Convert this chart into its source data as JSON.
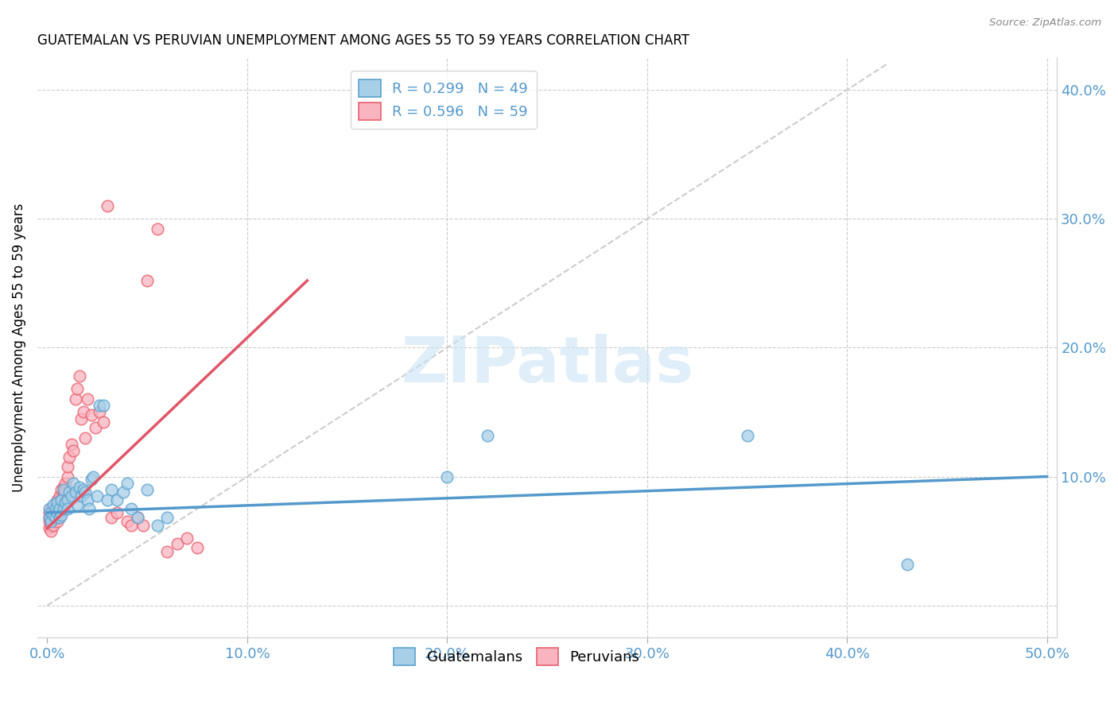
{
  "title": "GUATEMALAN VS PERUVIAN UNEMPLOYMENT AMONG AGES 55 TO 59 YEARS CORRELATION CHART",
  "source": "Source: ZipAtlas.com",
  "ylabel": "Unemployment Among Ages 55 to 59 years",
  "xlim": [
    -0.005,
    0.505
  ],
  "ylim": [
    -0.025,
    0.425
  ],
  "xticks": [
    0.0,
    0.1,
    0.2,
    0.3,
    0.4,
    0.5
  ],
  "yticks_right": [
    0.1,
    0.2,
    0.3,
    0.4
  ],
  "ytick_labels_right": [
    "10.0%",
    "20.0%",
    "30.0%",
    "40.0%"
  ],
  "xtick_labels": [
    "0.0%",
    "10.0%",
    "20.0%",
    "30.0%",
    "40.0%",
    "50.0%"
  ],
  "legend_r_guatemalan": "R = 0.299",
  "legend_n_guatemalan": "N = 49",
  "legend_r_peruvian": "R = 0.596",
  "legend_n_peruvian": "N = 59",
  "guatemalan_color": "#a8cfe8",
  "peruvian_color": "#f9b4c0",
  "guatemalan_edge_color": "#5ba3d0",
  "peruvian_edge_color": "#e8606e",
  "guatemalan_line_color": "#5599cc",
  "peruvian_line_color": "#e05568",
  "diagonal_color": "#cccccc",
  "background_color": "#ffffff",
  "guatemalan_x": [
    0.001,
    0.001,
    0.002,
    0.002,
    0.003,
    0.003,
    0.004,
    0.004,
    0.005,
    0.005,
    0.006,
    0.006,
    0.007,
    0.007,
    0.008,
    0.008,
    0.009,
    0.01,
    0.01,
    0.011,
    0.012,
    0.013,
    0.014,
    0.015,
    0.016,
    0.017,
    0.018,
    0.019,
    0.02,
    0.021,
    0.022,
    0.023,
    0.025,
    0.026,
    0.028,
    0.03,
    0.032,
    0.035,
    0.038,
    0.04,
    0.042,
    0.045,
    0.05,
    0.055,
    0.06,
    0.2,
    0.22,
    0.35,
    0.43
  ],
  "guatemalan_y": [
    0.075,
    0.068,
    0.072,
    0.065,
    0.07,
    0.078,
    0.068,
    0.075,
    0.072,
    0.08,
    0.075,
    0.068,
    0.082,
    0.07,
    0.075,
    0.09,
    0.08,
    0.082,
    0.075,
    0.088,
    0.085,
    0.095,
    0.088,
    0.078,
    0.092,
    0.085,
    0.09,
    0.088,
    0.082,
    0.075,
    0.098,
    0.1,
    0.085,
    0.155,
    0.155,
    0.082,
    0.09,
    0.082,
    0.088,
    0.095,
    0.075,
    0.068,
    0.09,
    0.062,
    0.068,
    0.1,
    0.132,
    0.132,
    0.032
  ],
  "peruvian_x": [
    0.001,
    0.001,
    0.001,
    0.001,
    0.002,
    0.002,
    0.002,
    0.002,
    0.003,
    0.003,
    0.003,
    0.003,
    0.004,
    0.004,
    0.004,
    0.005,
    0.005,
    0.005,
    0.005,
    0.006,
    0.006,
    0.006,
    0.007,
    0.007,
    0.007,
    0.008,
    0.008,
    0.008,
    0.009,
    0.009,
    0.01,
    0.01,
    0.011,
    0.012,
    0.013,
    0.014,
    0.015,
    0.016,
    0.017,
    0.018,
    0.019,
    0.02,
    0.022,
    0.024,
    0.026,
    0.028,
    0.03,
    0.032,
    0.035,
    0.04,
    0.042,
    0.045,
    0.048,
    0.05,
    0.055,
    0.06,
    0.065,
    0.07,
    0.075
  ],
  "peruvian_y": [
    0.068,
    0.072,
    0.065,
    0.06,
    0.068,
    0.075,
    0.062,
    0.058,
    0.072,
    0.068,
    0.075,
    0.062,
    0.078,
    0.072,
    0.068,
    0.082,
    0.075,
    0.07,
    0.065,
    0.085,
    0.078,
    0.072,
    0.09,
    0.082,
    0.078,
    0.088,
    0.092,
    0.082,
    0.095,
    0.088,
    0.1,
    0.108,
    0.115,
    0.125,
    0.12,
    0.16,
    0.168,
    0.178,
    0.145,
    0.15,
    0.13,
    0.16,
    0.148,
    0.138,
    0.15,
    0.142,
    0.31,
    0.068,
    0.072,
    0.065,
    0.062,
    0.068,
    0.062,
    0.252,
    0.292,
    0.042,
    0.048,
    0.052,
    0.045
  ],
  "guat_line_x0": 0.0,
  "guat_line_x1": 0.5,
  "guat_line_y0": 0.072,
  "guat_line_y1": 0.1,
  "peru_line_x0": 0.0,
  "peru_line_x1": 0.13,
  "peru_line_y0": 0.06,
  "peru_line_y1": 0.252
}
